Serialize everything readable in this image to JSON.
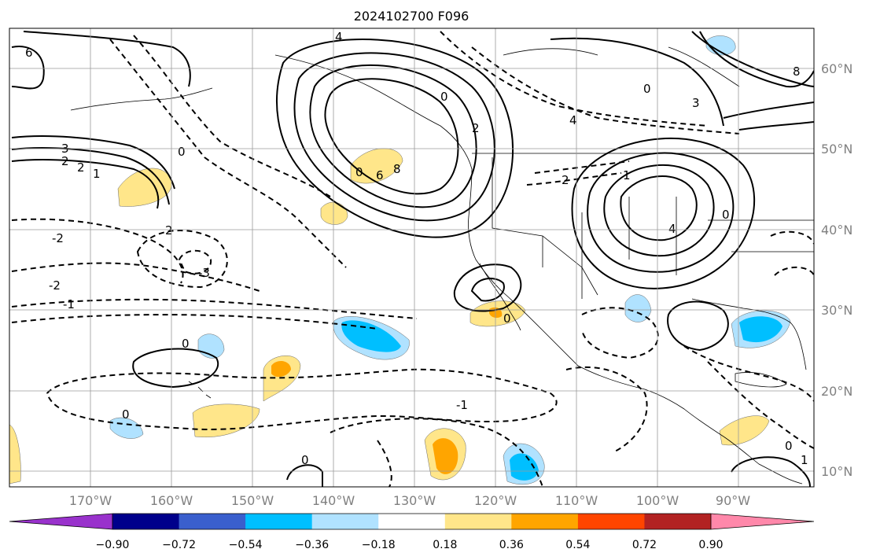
{
  "title": "2024102700 F096",
  "lon_labels": [
    "170°W",
    "160°W",
    "150°W",
    "140°W",
    "130°W",
    "120°W",
    "110°W",
    "100°W",
    "90°W"
  ],
  "lat_labels": [
    "60°N",
    "50°N",
    "40°N",
    "30°N",
    "20°N",
    "10°N"
  ],
  "colorbar": {
    "colors": [
      "#9932cc",
      "#00008b",
      "#3a5fcd",
      "#00bfff",
      "#b0e2ff",
      "#ffffff",
      "#ffe68a",
      "#ffa500",
      "#ff4500",
      "#b22222",
      "#ff88aa"
    ],
    "tick_labels": [
      "−0.90",
      "−0.72",
      "−0.54",
      "−0.36",
      "−0.18",
      "0.18",
      "0.36",
      "0.54",
      "0.72",
      "0.90"
    ]
  },
  "contour_labels": [
    "6",
    "3",
    "2",
    "1",
    "0",
    "4",
    "0",
    "2",
    "-2",
    "-2",
    "-1",
    "-3",
    "2",
    "0",
    "6",
    "8",
    "4",
    "2",
    "2",
    "1",
    "0",
    "4",
    "0",
    "3",
    "8",
    "0",
    "-1",
    "0",
    "0",
    "0",
    "1",
    "0"
  ]
}
